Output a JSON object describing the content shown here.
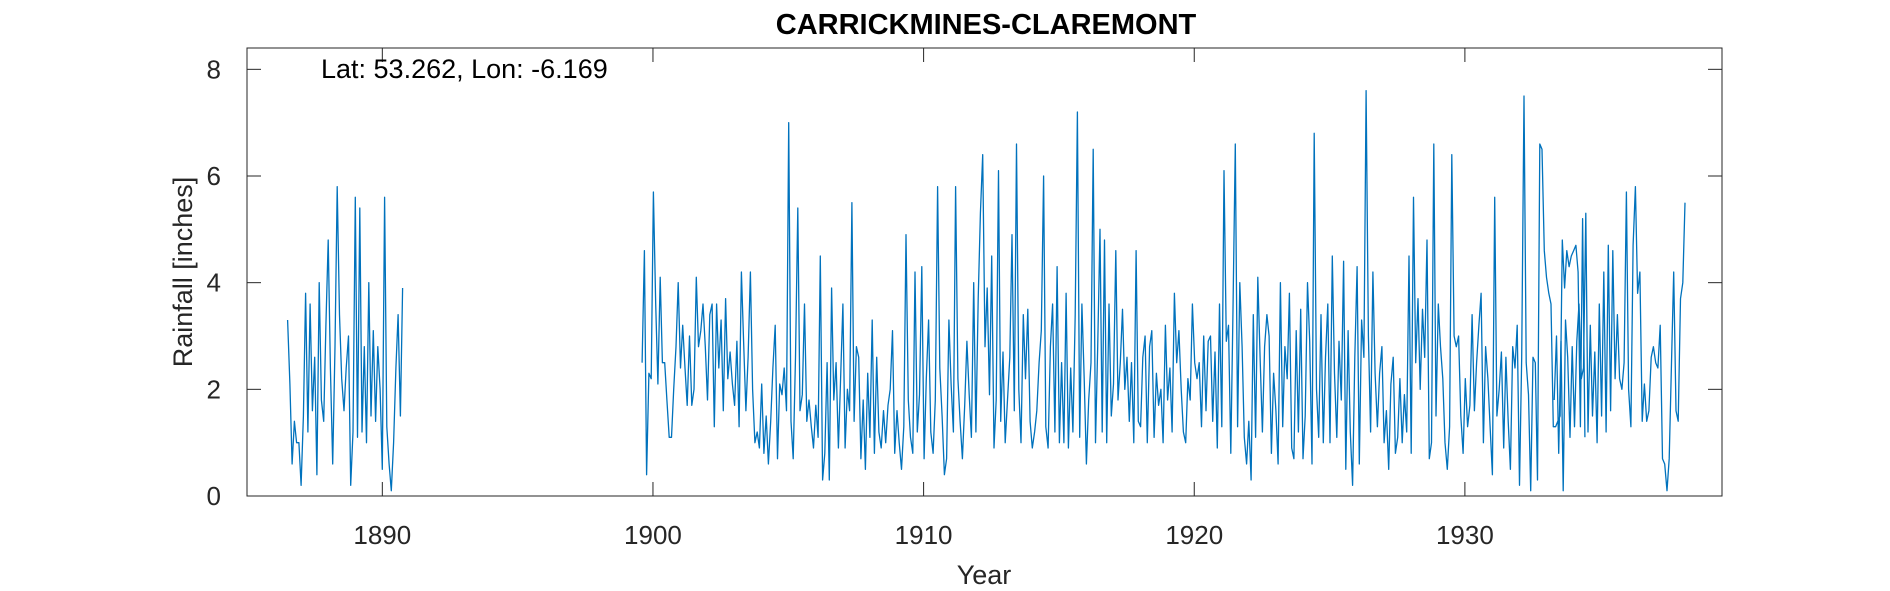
{
  "chart_data": {
    "type": "line",
    "title": "CARRICKMINES-CLAREMONT",
    "xlabel": "Year",
    "ylabel": "Rainfall [inches]",
    "annotation": "Lat: 53.262, Lon: -6.169",
    "xlim": [
      1885,
      1939.5
    ],
    "ylim": [
      0,
      8.4
    ],
    "xticks": [
      1890,
      1900,
      1910,
      1920,
      1930
    ],
    "yticks": [
      0,
      2,
      4,
      6,
      8
    ],
    "grid": false,
    "box": true,
    "series_color": "#0072BD",
    "segments": [
      {
        "start_year": 1886.5,
        "values": [
          3.3,
          2.1,
          0.6,
          1.4,
          1.0,
          1.0,
          0.2,
          1.5,
          3.8,
          1.2,
          3.6,
          1.6,
          2.6,
          0.4,
          4.0,
          1.8,
          1.4,
          3.2,
          4.8,
          2.4,
          0.6,
          2.8,
          5.8,
          3.4,
          2.2,
          1.6,
          2.4,
          3.0,
          0.2,
          1.2,
          5.6,
          1.1,
          5.4,
          1.2,
          2.8,
          1.0,
          4.0,
          1.5,
          3.1,
          1.4,
          2.8,
          2.0,
          0.5,
          5.6,
          1.3,
          0.6,
          0.1,
          1.0,
          2.4,
          3.4,
          1.5,
          3.9
        ]
      },
      {
        "start_year": 1899.6,
        "values": [
          2.5,
          4.6,
          0.4,
          2.3,
          2.2,
          5.7,
          3.6,
          2.1,
          4.1,
          2.5,
          2.5,
          1.8,
          1.1,
          1.1,
          2.0,
          2.8,
          4.0,
          2.4,
          3.2,
          2.4,
          1.7,
          3.0,
          1.7,
          2.0,
          4.1,
          2.8,
          3.1,
          3.6,
          2.8,
          1.8,
          3.4,
          3.6,
          1.3,
          3.6,
          2.4,
          3.3,
          1.6,
          3.7,
          2.2,
          2.7,
          2.1,
          1.7,
          2.9,
          1.3,
          4.2,
          2.9,
          1.6,
          2.6,
          4.2,
          2.0,
          1.0,
          1.2,
          0.9,
          2.1,
          0.8,
          1.5,
          0.6,
          1.4,
          2.4,
          3.2,
          0.7,
          2.1,
          1.9,
          2.4,
          1.6,
          7.0,
          1.4,
          0.7,
          2.6,
          5.4,
          1.6,
          1.9,
          3.6,
          1.4,
          1.8,
          1.3,
          0.9,
          1.7,
          1.1,
          4.5,
          0.3,
          0.8,
          2.5,
          0.3,
          3.9,
          1.8,
          2.5,
          0.9,
          2.2,
          3.6,
          0.9,
          2.0,
          1.6,
          5.5,
          1.4,
          2.8,
          2.6,
          0.7,
          1.8,
          0.5,
          2.3,
          1.1,
          3.3,
          0.8,
          2.6,
          1.2,
          0.9,
          1.6,
          1.0,
          1.7,
          2.0,
          3.1,
          0.8,
          1.6,
          1.0,
          0.5,
          1.3,
          4.9,
          1.8,
          1.1,
          0.8,
          4.2,
          1.2,
          1.9,
          4.3,
          0.7,
          2.2,
          3.3,
          1.2,
          0.8,
          1.8,
          5.8,
          2.4,
          1.5,
          0.4,
          0.7,
          3.3,
          2.1,
          1.2,
          5.8,
          2.2,
          1.4,
          0.7,
          1.7,
          2.9,
          1.9,
          1.1,
          4.0,
          1.2,
          3.7,
          5.3,
          6.4,
          2.8,
          3.9,
          1.9,
          4.5,
          0.9,
          1.8,
          6.1,
          1.4,
          2.7,
          1.0,
          1.8,
          2.6,
          4.9,
          1.6,
          6.6,
          2.0,
          1.0,
          3.4,
          2.2,
          3.5,
          1.4,
          0.9,
          1.2,
          1.6,
          2.5,
          3.1,
          6.0,
          1.3,
          0.9,
          2.8,
          3.6,
          1.2,
          4.3,
          1.0,
          2.5,
          1.0,
          3.8,
          0.9,
          2.4,
          1.2,
          3.4,
          7.2,
          1.1,
          3.6,
          2.2,
          0.6,
          1.8,
          2.5,
          6.5,
          1.0,
          2.8,
          5.0,
          1.2,
          4.8,
          1.0,
          3.6,
          1.5,
          2.1,
          4.6,
          1.8,
          2.5,
          3.5,
          2.0,
          2.6,
          1.4,
          2.5,
          1.0,
          4.6,
          1.4,
          1.3,
          2.6,
          3.0,
          1.0,
          2.8,
          3.1,
          1.1,
          2.3,
          1.7,
          2.0,
          1.0,
          3.2,
          1.8,
          2.4,
          1.2,
          3.8,
          2.5,
          3.1,
          2.0,
          1.2,
          1.0,
          2.2,
          1.8,
          3.6,
          2.5,
          2.2,
          2.5,
          1.3,
          3.0,
          1.6,
          2.9,
          3.0,
          1.4,
          2.7,
          0.9,
          3.6,
          1.3,
          6.1,
          2.9,
          3.2,
          0.8,
          3.5,
          6.6,
          1.3,
          4.0,
          2.8,
          1.1,
          0.6,
          1.4,
          0.3,
          3.4,
          1.1,
          4.1,
          2.6,
          1.2,
          2.8,
          3.4,
          3.0,
          0.8,
          2.3,
          1.6,
          0.6,
          4.0,
          1.3,
          2.8,
          2.2,
          3.8,
          0.9,
          0.7,
          3.1,
          1.2,
          3.5,
          0.7,
          1.5,
          4.0,
          2.9,
          0.6,
          6.8,
          2.0,
          1.1,
          3.4,
          1.0,
          2.6,
          3.6,
          1.0,
          4.5,
          2.3,
          1.1,
          2.9,
          1.8,
          4.4,
          0.5,
          3.1,
          1.2,
          0.2,
          2.6,
          4.3,
          0.6,
          3.3,
          2.6,
          7.6,
          3.0,
          1.2,
          4.2,
          2.3,
          1.3,
          2.3,
          2.8,
          1.0,
          1.6,
          0.5,
          2.1,
          2.6,
          0.8,
          1.1,
          2.2,
          1.0,
          1.9,
          1.2,
          4.5,
          0.8,
          5.6,
          2.5,
          3.7,
          2.0,
          3.5,
          2.6,
          4.8,
          0.7,
          1.0,
          6.6,
          1.5,
          3.6,
          2.8,
          2.2,
          1.0,
          0.5,
          1.3,
          6.4,
          3.0,
          2.8,
          3.0,
          1.5,
          0.8,
          2.2,
          1.3,
          1.7,
          3.4,
          1.6,
          2.5,
          3.2,
          3.8,
          1.0,
          2.8,
          2.2,
          1.3,
          0.4,
          5.6,
          1.5,
          2.0,
          2.7,
          0.9,
          2.6,
          1.4,
          0.5,
          2.8,
          2.4,
          3.2,
          0.2,
          2.6,
          7.5,
          2.5,
          1.9,
          0.1,
          2.6,
          2.5,
          0.3,
          6.6,
          6.5,
          4.6,
          4.1,
          3.8,
          3.6,
          1.3,
          1.3,
          1.4,
          1.5,
          4.8,
          3.9,
          4.6,
          4.3,
          4.5,
          4.6,
          4.7,
          4.2,
          1.3,
          5.2,
          1.1
        ]
      },
      {
        "start_year": 1933.3,
        "values": [
          1.8,
          3.0,
          0.8,
          2.9,
          0.1,
          3.3,
          2.6,
          1.1,
          2.8,
          1.3,
          2.9,
          3.6,
          2.2,
          2.4,
          5.3,
          1.2,
          3.2,
          1.5,
          2.7,
          1.0,
          3.6,
          1.5,
          4.2,
          1.2,
          4.7,
          1.6,
          4.6,
          2.2,
          3.4,
          2.2,
          2.0,
          2.5,
          5.7,
          2.0,
          1.3,
          4.7,
          5.8,
          3.8,
          4.2,
          1.4,
          2.1,
          1.4,
          1.6,
          2.6,
          2.8,
          2.5,
          2.4,
          3.2,
          0.7,
          0.6,
          0.1,
          0.7,
          2.5,
          4.2,
          1.6,
          1.4,
          3.7,
          4.0,
          5.5
        ]
      }
    ]
  }
}
